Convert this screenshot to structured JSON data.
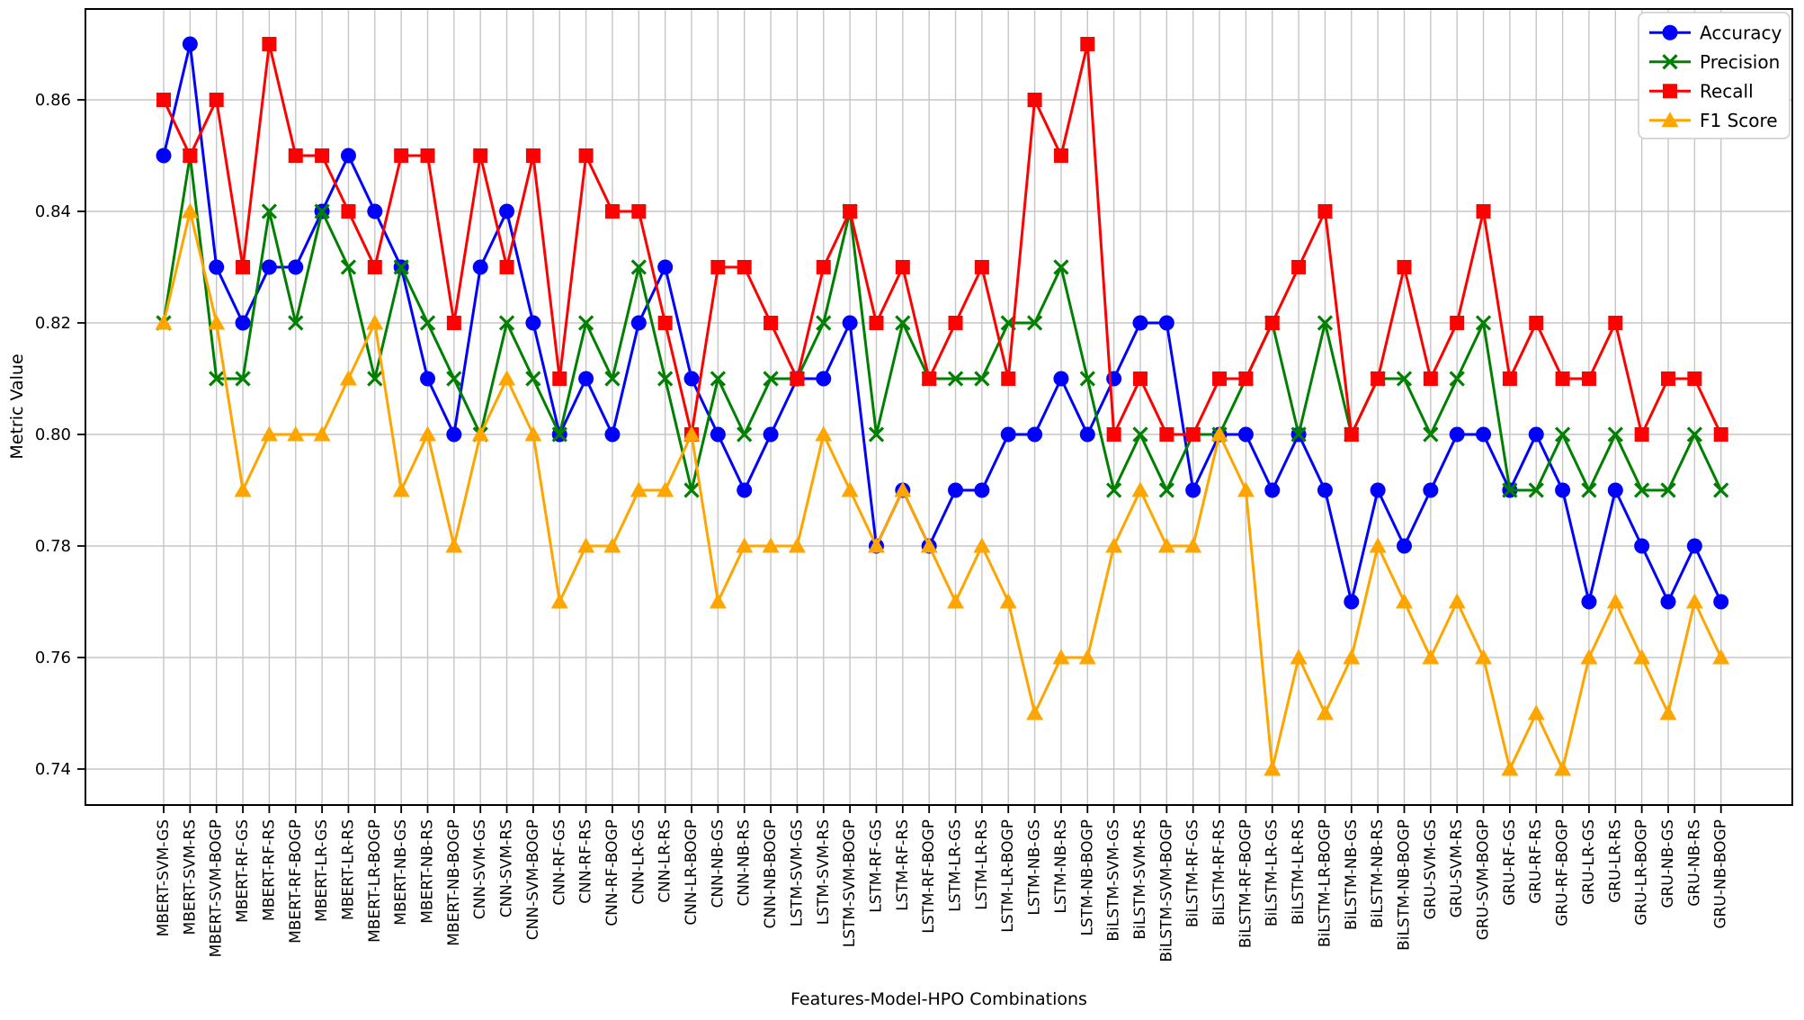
{
  "chart_data": {
    "type": "line",
    "title": "",
    "xlabel": "Features-Model-HPO Combinations",
    "ylabel": "Metric Value",
    "ylim": [
      0.7335,
      0.8763
    ],
    "yticks": [
      0.74,
      0.76,
      0.78,
      0.8,
      0.82,
      0.84,
      0.86
    ],
    "grid": true,
    "legend_position": "upper right",
    "categories": [
      "MBERT-SVM-GS",
      "MBERT-SVM-RS",
      "MBERT-SVM-BOGP",
      "MBERT-RF-GS",
      "MBERT-RF-RS",
      "MBERT-RF-BOGP",
      "MBERT-LR-GS",
      "MBERT-LR-RS",
      "MBERT-LR-BOGP",
      "MBERT-NB-GS",
      "MBERT-NB-RS",
      "MBERT-NB-BOGP",
      "CNN-SVM-GS",
      "CNN-SVM-RS",
      "CNN-SVM-BOGP",
      "CNN-RF-GS",
      "CNN-RF-RS",
      "CNN-RF-BOGP",
      "CNN-LR-GS",
      "CNN-LR-RS",
      "CNN-LR-BOGP",
      "CNN-NB-GS",
      "CNN-NB-RS",
      "CNN-NB-BOGP",
      "LSTM-SVM-GS",
      "LSTM-SVM-RS",
      "LSTM-SVM-BOGP",
      "LSTM-RF-GS",
      "LSTM-RF-RS",
      "LSTM-RF-BOGP",
      "LSTM-LR-GS",
      "LSTM-LR-RS",
      "LSTM-LR-BOGP",
      "LSTM-NB-GS",
      "LSTM-NB-RS",
      "LSTM-NB-BOGP",
      "BiLSTM-SVM-GS",
      "BiLSTM-SVM-RS",
      "BiLSTM-SVM-BOGP",
      "BiLSTM-RF-GS",
      "BiLSTM-RF-RS",
      "BiLSTM-RF-BOGP",
      "BiLSTM-LR-GS",
      "BiLSTM-LR-RS",
      "BiLSTM-LR-BOGP",
      "BiLSTM-NB-GS",
      "BiLSTM-NB-RS",
      "BiLSTM-NB-BOGP",
      "GRU-SVM-GS",
      "GRU-SVM-RS",
      "GRU-SVM-BOGP",
      "GRU-RF-GS",
      "GRU-RF-RS",
      "GRU-RF-BOGP",
      "GRU-LR-GS",
      "GRU-LR-RS",
      "GRU-LR-BOGP",
      "GRU-NB-GS",
      "GRU-NB-RS",
      "GRU-NB-BOGP"
    ],
    "series": [
      {
        "name": "Accuracy",
        "color": "#0000ff",
        "marker": "circle",
        "values": [
          0.85,
          0.87,
          0.83,
          0.82,
          0.83,
          0.83,
          0.84,
          0.85,
          0.84,
          0.83,
          0.81,
          0.8,
          0.83,
          0.84,
          0.82,
          0.8,
          0.81,
          0.8,
          0.82,
          0.83,
          0.81,
          0.8,
          0.79,
          0.8,
          0.81,
          0.81,
          0.82,
          0.78,
          0.79,
          0.78,
          0.79,
          0.79,
          0.8,
          0.8,
          0.81,
          0.8,
          0.81,
          0.82,
          0.82,
          0.79,
          0.8,
          0.8,
          0.79,
          0.8,
          0.79,
          0.77,
          0.79,
          0.78,
          0.79,
          0.8,
          0.8,
          0.79,
          0.8,
          0.79,
          0.77,
          0.79,
          0.78,
          0.77,
          0.78,
          0.77
        ]
      },
      {
        "name": "Precision",
        "color": "#008000",
        "marker": "x",
        "values": [
          0.82,
          0.85,
          0.81,
          0.81,
          0.84,
          0.82,
          0.84,
          0.83,
          0.81,
          0.83,
          0.82,
          0.81,
          0.8,
          0.82,
          0.81,
          0.8,
          0.82,
          0.81,
          0.83,
          0.81,
          0.79,
          0.81,
          0.8,
          0.81,
          0.81,
          0.82,
          0.84,
          0.8,
          0.82,
          0.81,
          0.81,
          0.81,
          0.82,
          0.82,
          0.83,
          0.81,
          0.79,
          0.8,
          0.79,
          0.8,
          0.8,
          0.81,
          0.82,
          0.8,
          0.82,
          0.8,
          0.81,
          0.81,
          0.8,
          0.81,
          0.82,
          0.79,
          0.79,
          0.8,
          0.79,
          0.8,
          0.79,
          0.79,
          0.8,
          0.79
        ]
      },
      {
        "name": "Recall",
        "color": "#ff0000",
        "marker": "square",
        "values": [
          0.86,
          0.85,
          0.86,
          0.83,
          0.87,
          0.85,
          0.85,
          0.84,
          0.83,
          0.85,
          0.85,
          0.82,
          0.85,
          0.83,
          0.85,
          0.81,
          0.85,
          0.84,
          0.84,
          0.82,
          0.8,
          0.83,
          0.83,
          0.82,
          0.81,
          0.83,
          0.84,
          0.82,
          0.83,
          0.81,
          0.82,
          0.83,
          0.81,
          0.86,
          0.85,
          0.87,
          0.8,
          0.81,
          0.8,
          0.8,
          0.81,
          0.81,
          0.82,
          0.83,
          0.84,
          0.8,
          0.81,
          0.83,
          0.81,
          0.82,
          0.84,
          0.81,
          0.82,
          0.81,
          0.81,
          0.82,
          0.8,
          0.81,
          0.81,
          0.8
        ]
      },
      {
        "name": "F1 Score",
        "color": "#ffa500",
        "marker": "triangle",
        "values": [
          0.82,
          0.84,
          0.82,
          0.79,
          0.8,
          0.8,
          0.8,
          0.81,
          0.82,
          0.79,
          0.8,
          0.78,
          0.8,
          0.81,
          0.8,
          0.77,
          0.78,
          0.78,
          0.79,
          0.79,
          0.8,
          0.77,
          0.78,
          0.78,
          0.78,
          0.8,
          0.79,
          0.78,
          0.79,
          0.78,
          0.77,
          0.78,
          0.77,
          0.75,
          0.76,
          0.76,
          0.78,
          0.79,
          0.78,
          0.78,
          0.8,
          0.79,
          0.74,
          0.76,
          0.75,
          0.76,
          0.78,
          0.77,
          0.76,
          0.77,
          0.76,
          0.74,
          0.75,
          0.74,
          0.76,
          0.77,
          0.76,
          0.75,
          0.77,
          0.76
        ]
      }
    ]
  }
}
